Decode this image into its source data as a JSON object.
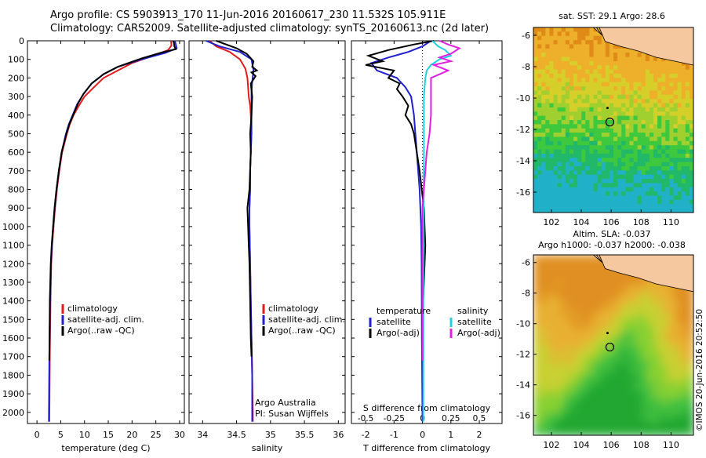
{
  "header": {
    "line1": "Argo profile: CS 5903913_170 11-Jun-2016 20160617_230 11.532S 105.911E",
    "line2": "Climatology: CARS2009. Satellite-adjusted climatology: synTS_20160613.nc (2d later)"
  },
  "stamp": "©IMOS 20-Jun-2016 20:52:50",
  "chart_data": [
    {
      "type": "line",
      "name": "temperature-profile",
      "xlabel": "temperature (deg C)",
      "xlim": [
        -2,
        31
      ],
      "xticks": [
        0,
        5,
        10,
        15,
        20,
        25,
        30
      ],
      "ylim": [
        2060,
        0
      ],
      "yticks": [
        0,
        100,
        200,
        300,
        400,
        500,
        600,
        700,
        800,
        900,
        1000,
        1100,
        1200,
        1300,
        1400,
        1500,
        1600,
        1700,
        1800,
        1900,
        2000
      ],
      "legend": [
        "climatology",
        "satellite-adj. clim.",
        "Argo(..raw -QC)"
      ],
      "legend_position": "bottom",
      "series": [
        {
          "name": "climatology",
          "color": "#e41a1c",
          "x": [
            28.2,
            28.3,
            27.6,
            25,
            20,
            17,
            14,
            12,
            10,
            8.8,
            7.7,
            6.9,
            6.3,
            5.3,
            4.7,
            4.2,
            3.8,
            3.5,
            3.2,
            3.0,
            2.85,
            2.7,
            2.6
          ],
          "y": [
            0,
            25,
            50,
            75,
            120,
            160,
            200,
            250,
            300,
            350,
            400,
            450,
            500,
            600,
            700,
            800,
            900,
            1000,
            1100,
            1200,
            1400,
            1700,
            2050
          ]
        },
        {
          "name": "satellite-adj. clim.",
          "color": "#2020d0",
          "x": [
            29,
            29.2,
            29.4,
            27,
            22,
            17,
            14,
            11.5,
            9.7,
            8.5,
            7.5,
            6.7,
            6.1,
            5.2,
            4.6,
            4.1,
            3.75,
            3.4,
            3.15,
            2.95,
            2.75,
            2.6,
            2.5
          ],
          "y": [
            0,
            20,
            40,
            65,
            100,
            140,
            180,
            230,
            290,
            340,
            400,
            450,
            500,
            600,
            700,
            800,
            900,
            1000,
            1100,
            1200,
            1400,
            1700,
            2050
          ]
        },
        {
          "name": "Argo(..raw -QC)",
          "color": "#000000",
          "x": [
            28.6,
            28.8,
            28.9,
            29.2,
            26,
            22,
            17,
            14,
            11.5,
            9.8,
            8.6,
            7.6,
            6.8,
            6.2,
            5.2,
            4.6,
            4.1,
            3.7,
            3.4,
            3.1,
            2.9,
            2.7,
            2.6
          ],
          "y": [
            0,
            10,
            30,
            45,
            65,
            95,
            140,
            180,
            230,
            285,
            340,
            400,
            450,
            500,
            600,
            700,
            800,
            900,
            1000,
            1100,
            1200,
            1400,
            1720
          ]
        }
      ]
    },
    {
      "type": "line",
      "name": "salinity-profile",
      "xlabel": "salinity",
      "xlim": [
        33.8,
        36.1
      ],
      "xticks": [
        34,
        34.5,
        35,
        35.5,
        36
      ],
      "xtick_labels": [
        "34",
        "34.5",
        "35",
        "35.5",
        "36"
      ],
      "ylim": [
        2060,
        0
      ],
      "legend": [
        "climatology",
        "satellite-adj. clim.",
        "Argo(..raw -QC)"
      ],
      "legend_position": "bottom",
      "annotation": [
        "Argo Australia",
        "PI: Susan Wijffels"
      ],
      "series": [
        {
          "name": "climatology",
          "color": "#e41a1c",
          "x": [
            34.1,
            34.2,
            34.4,
            34.55,
            34.63,
            34.66,
            34.67,
            34.68,
            34.7,
            34.71,
            34.72,
            34.71,
            34.7,
            34.7,
            34.69,
            34.69,
            34.7,
            34.71,
            34.72,
            34.73,
            34.74,
            34.74
          ],
          "y": [
            0,
            30,
            60,
            100,
            150,
            200,
            250,
            300,
            350,
            400,
            500,
            600,
            700,
            800,
            900,
            1000,
            1200,
            1400,
            1600,
            1800,
            2000,
            2050
          ]
        },
        {
          "name": "satellite-adj. clim.",
          "color": "#2020d0",
          "x": [
            34.05,
            34.25,
            34.55,
            34.72,
            34.75,
            34.73,
            34.72,
            34.72,
            34.72,
            34.72,
            34.71,
            34.7,
            34.7,
            34.69,
            34.69,
            34.7,
            34.71,
            34.72,
            34.73,
            34.73
          ],
          "y": [
            0,
            30,
            60,
            100,
            160,
            220,
            280,
            350,
            400,
            500,
            600,
            700,
            800,
            900,
            1000,
            1200,
            1400,
            1600,
            1800,
            2050
          ]
        },
        {
          "name": "Argo(..raw -QC)",
          "color": "#000000",
          "x": [
            34.2,
            34.5,
            34.65,
            34.75,
            34.73,
            34.8,
            34.72,
            34.78,
            34.71,
            34.73,
            34.72,
            34.7,
            34.71,
            34.7,
            34.69,
            34.66,
            34.67,
            34.68,
            34.69,
            34.7,
            34.71,
            34.72
          ],
          "y": [
            0,
            40,
            70,
            110,
            140,
            160,
            170,
            190,
            230,
            300,
            400,
            500,
            600,
            700,
            800,
            900,
            1000,
            1100,
            1200,
            1400,
            1600,
            1700
          ]
        }
      ]
    },
    {
      "type": "line",
      "name": "difference-profile",
      "xlabel": "T difference from climatology",
      "xlabel_top": "S difference from climatology",
      "xlim": [
        -2.5,
        2.8
      ],
      "xticks": [
        -2,
        -1,
        0,
        1,
        2
      ],
      "xticks_top": [
        -0.5,
        -0.25,
        0,
        0.25,
        0.5
      ],
      "ylim": [
        2060,
        0
      ],
      "legend": [
        {
          "group": "temperature",
          "items": [
            "satellite",
            "Argo(-adj)"
          ]
        },
        {
          "group": "salinity",
          "items": [
            "satellite",
            "Argo(-adj)"
          ]
        }
      ],
      "legend_position": "bottom",
      "series": [
        {
          "name": "temperature satellite",
          "color": "#2020d0",
          "x": [
            0.3,
            0.0,
            -0.5,
            -1.2,
            -1.8,
            -1.6,
            -0.9,
            -0.6,
            -0.4,
            -0.3,
            -0.25,
            -0.2,
            -0.15,
            -0.1,
            -0.05,
            -0.03,
            -0.02,
            0.0
          ],
          "y": [
            0,
            30,
            60,
            90,
            120,
            160,
            200,
            250,
            300,
            400,
            500,
            600,
            700,
            800,
            1000,
            1200,
            1600,
            2050
          ]
        },
        {
          "name": "temperature Argo(-adj)",
          "color": "#000000",
          "x": [
            0.4,
            -0.3,
            -1.2,
            -1.9,
            -1.4,
            -2.0,
            -1.0,
            -1.2,
            -0.8,
            -0.9,
            -0.7,
            -0.5,
            -0.6,
            -0.4,
            -0.3,
            -0.2,
            -0.1,
            0.05,
            0.1,
            0.05,
            0.0,
            0.0
          ],
          "y": [
            0,
            20,
            50,
            80,
            110,
            130,
            160,
            200,
            230,
            260,
            300,
            350,
            400,
            450,
            500,
            600,
            700,
            900,
            1100,
            1300,
            1500,
            1720
          ]
        },
        {
          "name": "salinity satellite",
          "color": "#20d0e0",
          "x": [
            0.35,
            0.55,
            0.8,
            1.0,
            0.6,
            0.3,
            0.15,
            0.1,
            0.05,
            0.05,
            0.05,
            0.04,
            0.04,
            0.03,
            0.03,
            0.03
          ],
          "y": [
            0,
            30,
            50,
            80,
            100,
            130,
            160,
            200,
            300,
            400,
            600,
            800,
            1000,
            1400,
            1800,
            2050
          ]
        },
        {
          "name": "salinity Argo(-adj)",
          "color": "#e020e0",
          "x": [
            0.6,
            0.9,
            1.3,
            1.0,
            0.6,
            1.0,
            0.4,
            0.9,
            0.3,
            0.3,
            0.3,
            0.25,
            0.15,
            0.1,
            0.05,
            0.0,
            0.0,
            0.0
          ],
          "y": [
            0,
            20,
            40,
            70,
            90,
            110,
            130,
            160,
            200,
            300,
            400,
            500,
            600,
            700,
            800,
            900,
            1200,
            1720
          ]
        }
      ]
    },
    {
      "type": "heatmap",
      "name": "sst-map",
      "title": "sat. SST: 29.1  Argo: 28.6",
      "xlim": [
        100.8,
        111.5
      ],
      "ylim": [
        -17.3,
        -5.5
      ],
      "xticks": [
        102,
        104,
        106,
        108,
        110
      ],
      "yticks": [
        -6,
        -8,
        -10,
        -12,
        -14,
        -16
      ],
      "argo_position": {
        "lon": 105.911,
        "lat": -11.532
      }
    },
    {
      "type": "heatmap",
      "name": "sla-map",
      "title": "Altim. SLA: -0.037",
      "subtitle": "Argo h1000: -0.037 h2000: -0.038",
      "xlim": [
        100.8,
        111.5
      ],
      "ylim": [
        -17.3,
        -5.5
      ],
      "xticks": [
        102,
        104,
        106,
        108,
        110
      ],
      "yticks": [
        -6,
        -8,
        -10,
        -12,
        -14,
        -16
      ],
      "argo_position": {
        "lon": 105.911,
        "lat": -11.532
      }
    }
  ]
}
